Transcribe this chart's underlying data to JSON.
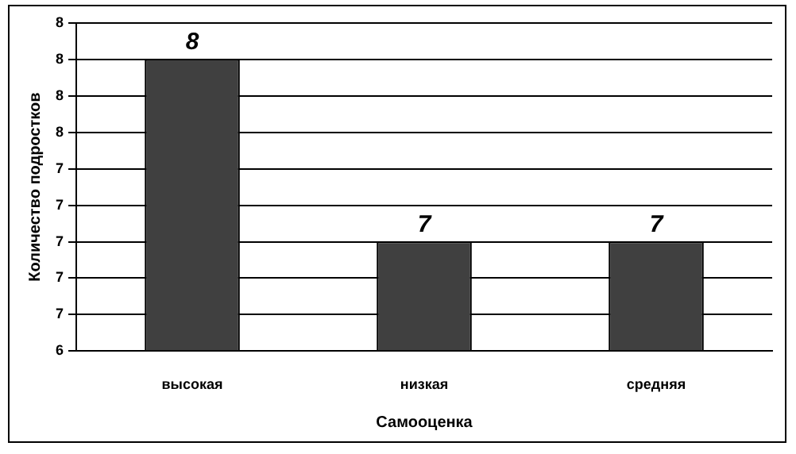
{
  "chart_data": {
    "type": "bar",
    "xlabel": "Самооценка",
    "ylabel": "Количество подростков",
    "categories": [
      "высокая",
      "низкая",
      "средняя"
    ],
    "values": [
      8,
      7,
      7
    ],
    "color": "#404040",
    "ylim": [
      6.4,
      8.2
    ],
    "yticks": [
      {
        "value": 6.4,
        "label": "6"
      },
      {
        "value": 6.6,
        "label": "7"
      },
      {
        "value": 6.8,
        "label": "7"
      },
      {
        "value": 7.0,
        "label": "7"
      },
      {
        "value": 7.2,
        "label": "7"
      },
      {
        "value": 7.4,
        "label": "7"
      },
      {
        "value": 7.6,
        "label": "8"
      },
      {
        "value": 7.8,
        "label": "8"
      },
      {
        "value": 8.0,
        "label": "8"
      },
      {
        "value": 8.2,
        "label": "8"
      }
    ],
    "grid": "y",
    "data_labels": true
  }
}
